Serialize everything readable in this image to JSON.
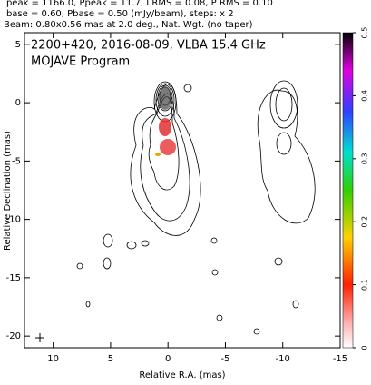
{
  "chart_data": {
    "type": "contour",
    "header": [
      "Ipeak = 1166.0, Ppeak = 11.7, I RMS = 0.08, P RMS = 0.10",
      "Ibase = 0.60, Pbase = 0.50 (mJy/beam), steps: x 2",
      "Beam: 0.80x0.56 mas at 2.0 deg., Nat. Wgt. (no taper)"
    ],
    "title": "2200+420, 2016-08-09, VLBA 15.4 GHz",
    "subtitle": "MOJAVE Program",
    "xlabel": "Relative R.A. (mas)",
    "ylabel": "Relative Declination (mas)",
    "xlim": [
      12.5,
      -15
    ],
    "xticks": [
      10,
      5,
      0,
      -5,
      -10,
      -15
    ],
    "ylim": [
      -21,
      6
    ],
    "yticks": [
      5,
      0,
      -5,
      -10,
      -15,
      -20
    ],
    "colorbar": {
      "lim": [
        0,
        0.5
      ],
      "ticks": [
        0,
        0.1,
        0.2,
        0.3,
        0.4,
        0.5
      ]
    }
  }
}
